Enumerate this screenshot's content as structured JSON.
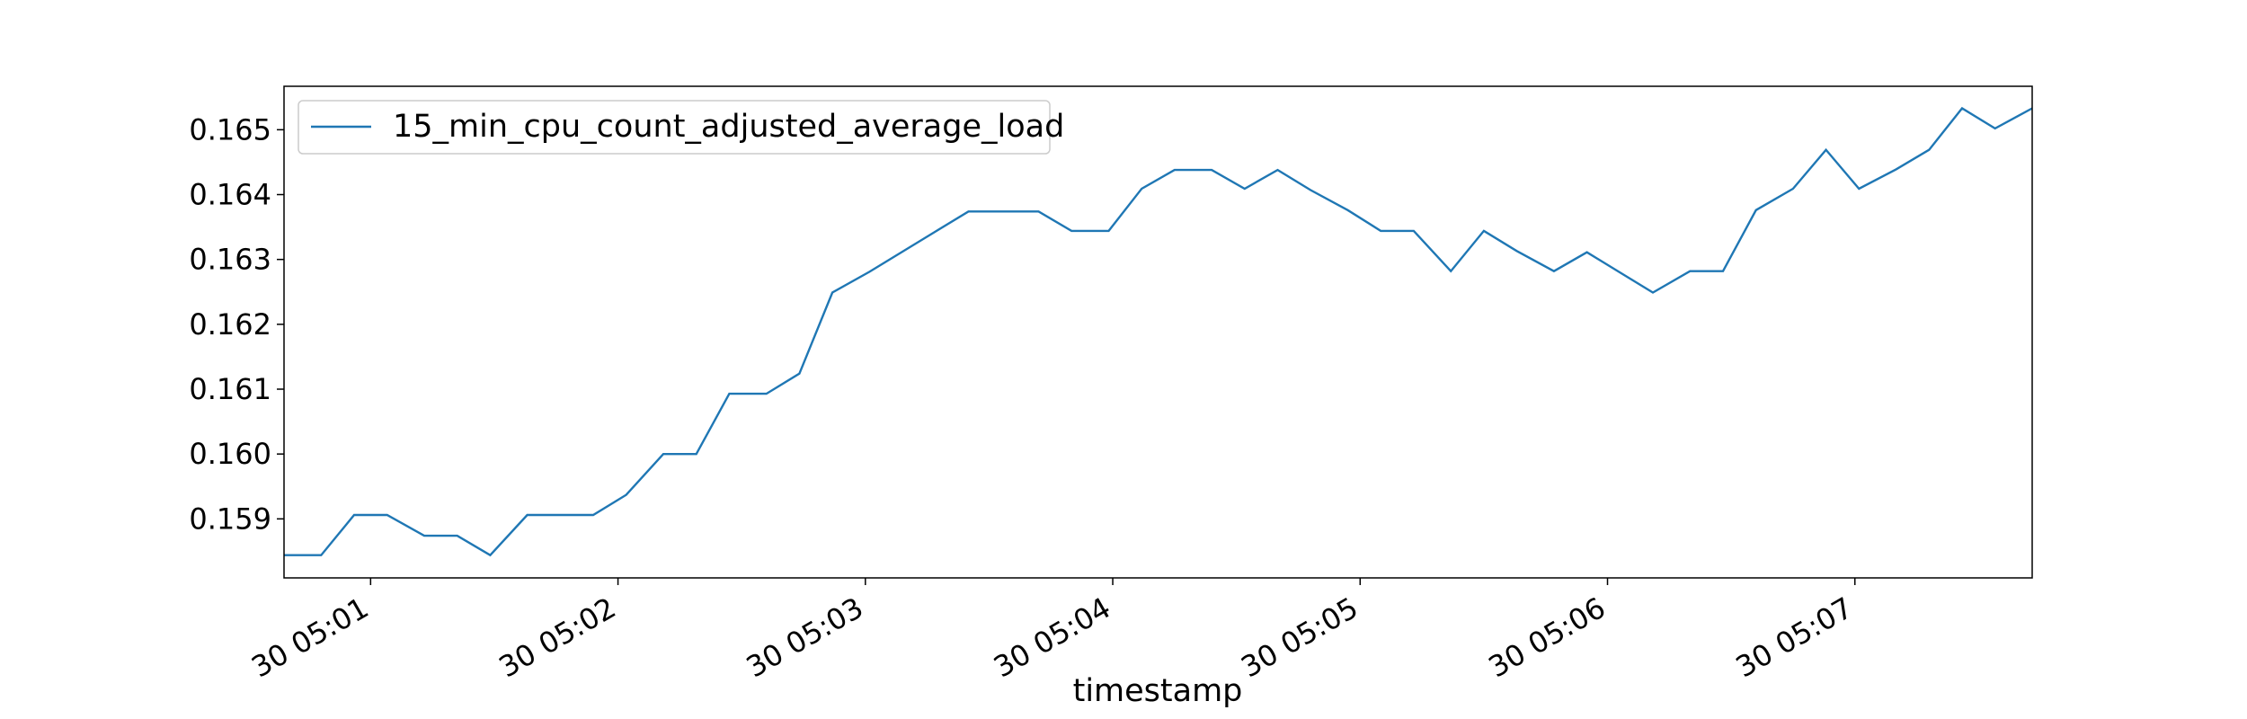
{
  "chart_data": {
    "type": "line",
    "xlabel": "timestamp",
    "x": [
      "30 05:00:39",
      "30 05:00:48",
      "30 05:00:56",
      "30 05:01:04",
      "30 05:01:13",
      "30 05:01:21",
      "30 05:01:29",
      "30 05:01:38",
      "30 05:01:46",
      "30 05:01:54",
      "30 05:02:02",
      "30 05:02:11",
      "30 05:02:19",
      "30 05:02:27",
      "30 05:02:36",
      "30 05:02:44",
      "30 05:02:52",
      "30 05:03:01",
      "30 05:03:09",
      "30 05:03:17",
      "30 05:03:25",
      "30 05:03:34",
      "30 05:03:42",
      "30 05:03:50",
      "30 05:03:59",
      "30 05:04:07",
      "30 05:04:15",
      "30 05:04:24",
      "30 05:04:32",
      "30 05:04:40",
      "30 05:04:48",
      "30 05:04:57",
      "30 05:05:05",
      "30 05:05:13",
      "30 05:05:22",
      "30 05:05:30",
      "30 05:05:38",
      "30 05:05:47",
      "30 05:05:55",
      "30 05:06:03",
      "30 05:06:11",
      "30 05:06:20",
      "30 05:06:28",
      "30 05:06:36",
      "30 05:06:45",
      "30 05:06:53",
      "30 05:07:01",
      "30 05:07:10",
      "30 05:07:18",
      "30 05:07:26",
      "30 05:07:34",
      "30 05:07:43"
    ],
    "series": [
      {
        "name": "15_min_cpu_count_adjusted_average_load",
        "color": "#1f77b4",
        "values": [
          0.15844,
          0.15844,
          0.15906,
          0.15906,
          0.15874,
          0.15874,
          0.15844,
          0.15906,
          0.15906,
          0.15906,
          0.15937,
          0.16,
          0.16,
          0.16093,
          0.16093,
          0.16124,
          0.16249,
          0.16281,
          0.16312,
          0.16343,
          0.16374,
          0.16374,
          0.16374,
          0.16344,
          0.16344,
          0.16409,
          0.16438,
          0.16438,
          0.16409,
          0.16438,
          0.16407,
          0.16376,
          0.16344,
          0.16344,
          0.16282,
          0.16344,
          0.16313,
          0.16282,
          0.16311,
          0.1628,
          0.16249,
          0.16282,
          0.16282,
          0.16376,
          0.16409,
          0.16469,
          0.16409,
          0.16439,
          0.16469,
          0.16533,
          0.16502,
          0.16533
        ]
      }
    ],
    "xlim": [
      "30 05:00:39",
      "30 05:07:43"
    ],
    "xticks": [
      {
        "value": "30 05:01:00",
        "label": "30 05:01"
      },
      {
        "value": "30 05:02:00",
        "label": "30 05:02"
      },
      {
        "value": "30 05:03:00",
        "label": "30 05:03"
      },
      {
        "value": "30 05:04:00",
        "label": "30 05:04"
      },
      {
        "value": "30 05:05:00",
        "label": "30 05:05"
      },
      {
        "value": "30 05:06:00",
        "label": "30 05:06"
      },
      {
        "value": "30 05:07:00",
        "label": "30 05:07"
      }
    ],
    "ylim": [
      0.15809,
      0.16567
    ],
    "yticks": [
      0.159,
      0.16,
      0.161,
      0.162,
      0.163,
      0.164,
      0.165
    ],
    "ytick_labels": [
      "0.159",
      "0.160",
      "0.161",
      "0.162",
      "0.163",
      "0.164",
      "0.165"
    ],
    "legend": "upper left"
  }
}
